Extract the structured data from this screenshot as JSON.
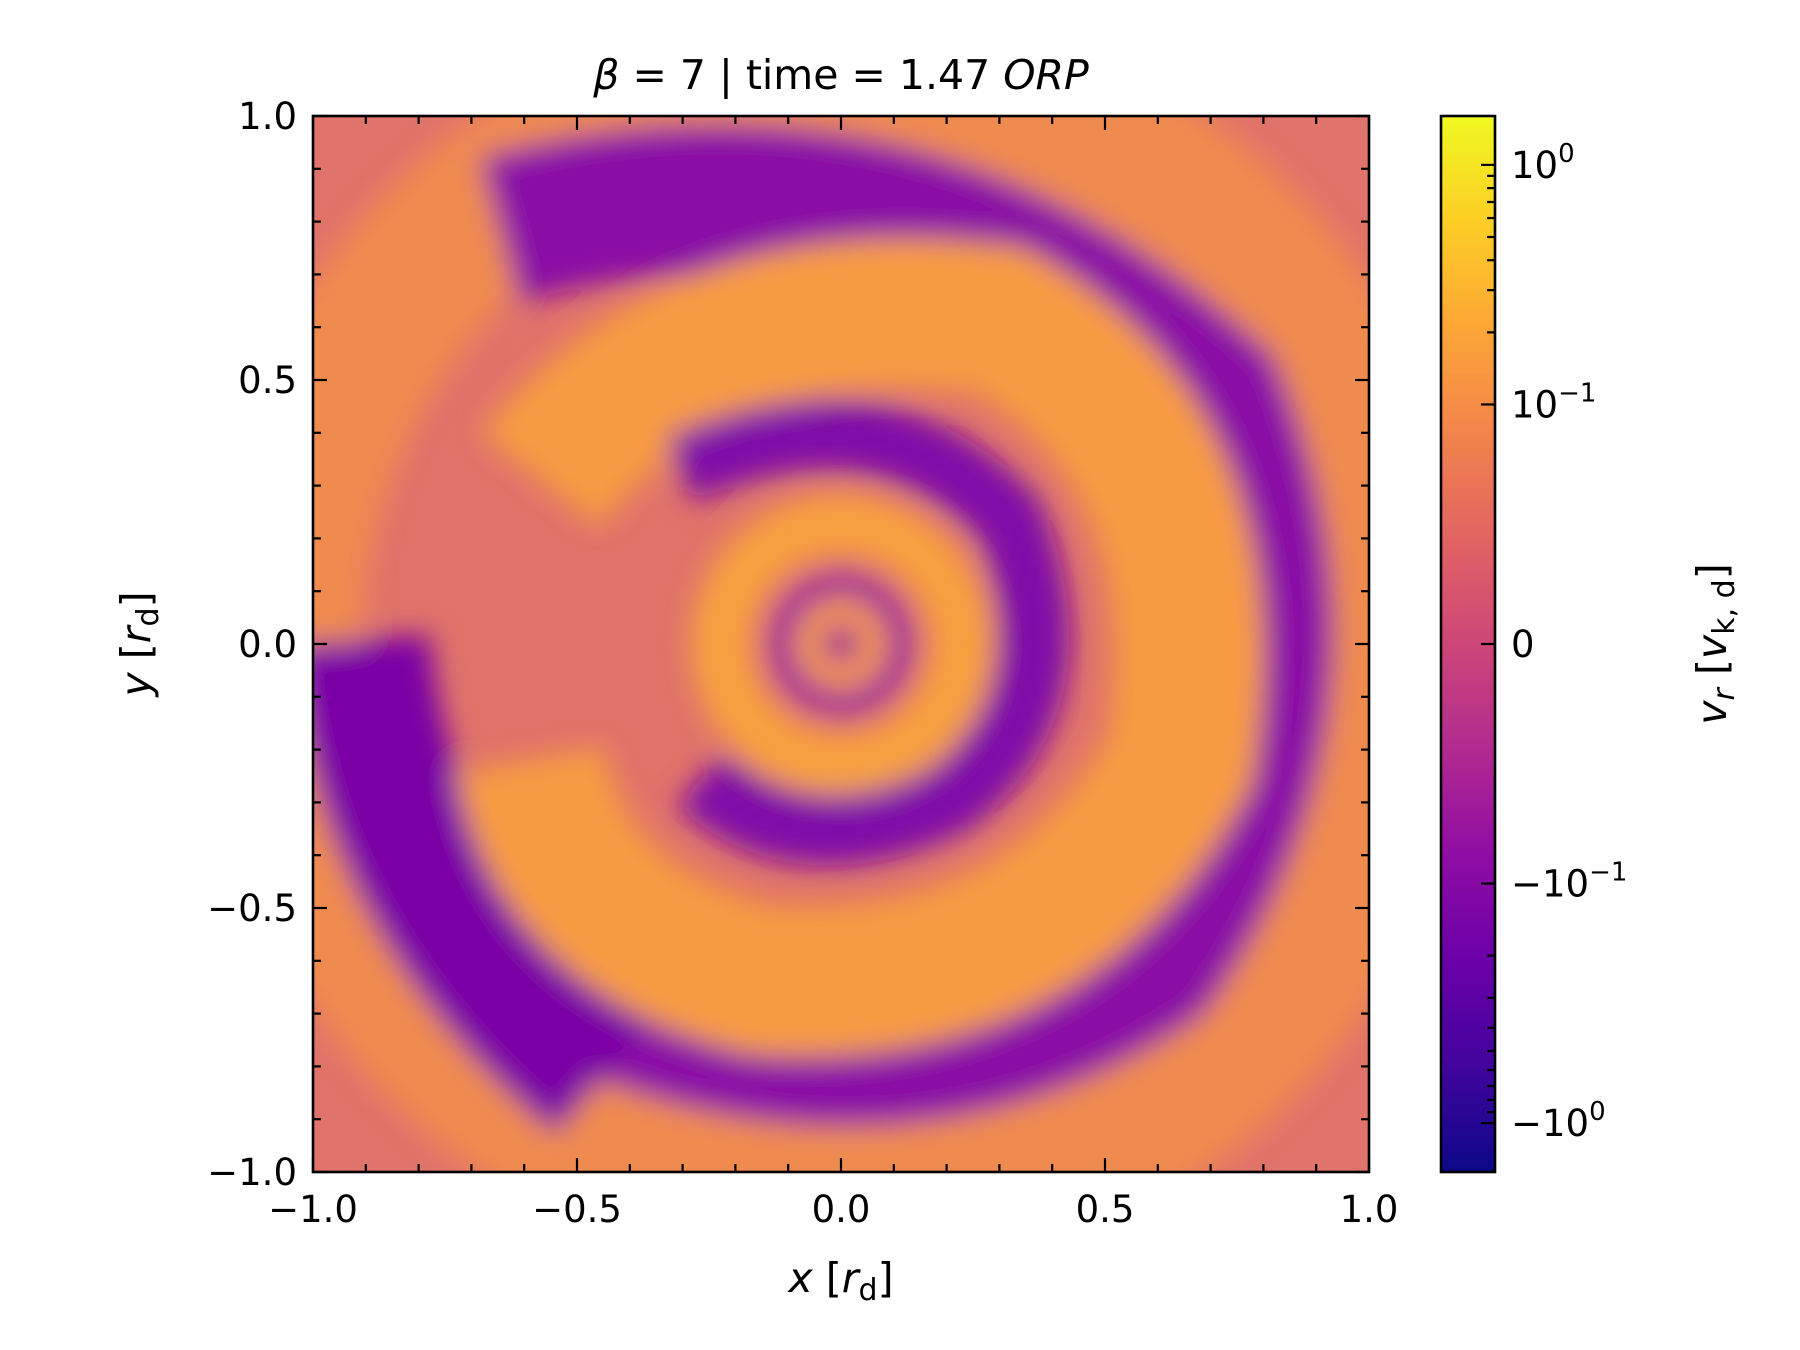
{
  "chart_data": {
    "type": "heatmap",
    "title": {
      "beta_symbol": "β",
      "beta_text": " = 7 | time = 1.47 ",
      "time_unit": "ORP"
    },
    "xlabel": {
      "var": "x",
      "unit_var": "r",
      "unit_sub": "d"
    },
    "ylabel": {
      "var": "y",
      "unit_var": "r",
      "unit_sub": "d"
    },
    "xlim": [
      -1.0,
      1.0
    ],
    "ylim": [
      -1.0,
      1.0
    ],
    "xticks": [
      -1.0,
      -0.5,
      0.0,
      0.5,
      1.0
    ],
    "yticks": [
      -1.0,
      -0.5,
      0.0,
      0.5,
      1.0
    ],
    "xtick_labels": [
      "−1.0",
      "−0.5",
      "0.0",
      "0.5",
      "1.0"
    ],
    "ytick_labels": [
      "−1.0",
      "−0.5",
      "0.0",
      "0.5",
      "1.0"
    ],
    "colorbar": {
      "label": {
        "var": "v",
        "var_sub": "r",
        "unit_var": "v",
        "unit_sub": "k, d"
      },
      "scale": "symlog",
      "colormap": "plasma",
      "range": [
        -1.6,
        1.6
      ],
      "ticks": [
        {
          "value": 1.0,
          "base": "10",
          "exp": "0"
        },
        {
          "value": 0.1,
          "base": "10",
          "exp": "−1"
        },
        {
          "value": 0.0,
          "base": "0",
          "exp": ""
        },
        {
          "value": -0.1,
          "base": "−10",
          "exp": "−1"
        },
        {
          "value": -1.0,
          "base": "−10",
          "exp": "0"
        }
      ]
    },
    "field_description": "spiral radial velocity field in disk, plasma colormap",
    "grid": false
  }
}
